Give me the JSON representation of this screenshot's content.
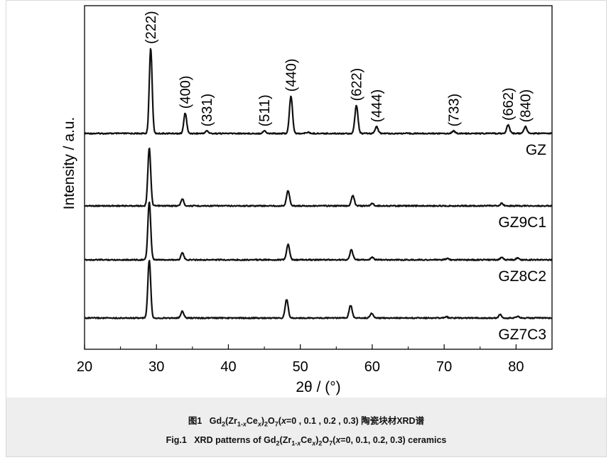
{
  "chart_data": {
    "type": "line",
    "xlabel": "2θ / (°)",
    "ylabel": "Intensity / a.u.",
    "xlim": [
      20,
      85
    ],
    "xticks": [
      20,
      30,
      40,
      50,
      60,
      70,
      80
    ],
    "grid": false,
    "series": [
      {
        "name": "GZ",
        "baseline_frac": 0.0,
        "peaks": [
          {
            "x": 29.2,
            "h": 1.0,
            "w": 0.28
          },
          {
            "x": 34.0,
            "h": 0.24,
            "w": 0.28
          },
          {
            "x": 37.0,
            "h": 0.03,
            "w": 0.3
          },
          {
            "x": 45.0,
            "h": 0.03,
            "w": 0.3
          },
          {
            "x": 48.7,
            "h": 0.44,
            "w": 0.3
          },
          {
            "x": 51.0,
            "h": 0.015,
            "w": 0.3
          },
          {
            "x": 57.8,
            "h": 0.33,
            "w": 0.3
          },
          {
            "x": 60.6,
            "h": 0.08,
            "w": 0.3
          },
          {
            "x": 71.3,
            "h": 0.03,
            "w": 0.3
          },
          {
            "x": 78.9,
            "h": 0.1,
            "w": 0.3
          },
          {
            "x": 81.3,
            "h": 0.08,
            "w": 0.3
          }
        ]
      },
      {
        "name": "GZ9C1",
        "peaks": [
          {
            "x": 29.0,
            "h": 1.0,
            "w": 0.28
          },
          {
            "x": 33.6,
            "h": 0.12,
            "w": 0.28
          },
          {
            "x": 48.3,
            "h": 0.26,
            "w": 0.3
          },
          {
            "x": 57.3,
            "h": 0.18,
            "w": 0.3
          },
          {
            "x": 60.0,
            "h": 0.04,
            "w": 0.3
          },
          {
            "x": 78.0,
            "h": 0.04,
            "w": 0.3
          }
        ]
      },
      {
        "name": "GZ8C2",
        "peaks": [
          {
            "x": 29.0,
            "h": 1.0,
            "w": 0.28
          },
          {
            "x": 33.6,
            "h": 0.12,
            "w": 0.28
          },
          {
            "x": 48.3,
            "h": 0.26,
            "w": 0.3
          },
          {
            "x": 57.1,
            "h": 0.17,
            "w": 0.3
          },
          {
            "x": 60.0,
            "h": 0.04,
            "w": 0.3
          },
          {
            "x": 70.4,
            "h": 0.02,
            "w": 0.3
          },
          {
            "x": 78.0,
            "h": 0.04,
            "w": 0.3
          },
          {
            "x": 80.2,
            "h": 0.03,
            "w": 0.3
          }
        ]
      },
      {
        "name": "GZ7C3",
        "peaks": [
          {
            "x": 29.0,
            "h": 1.0,
            "w": 0.28
          },
          {
            "x": 33.6,
            "h": 0.12,
            "w": 0.28
          },
          {
            "x": 48.1,
            "h": 0.32,
            "w": 0.3
          },
          {
            "x": 57.0,
            "h": 0.22,
            "w": 0.3
          },
          {
            "x": 59.9,
            "h": 0.08,
            "w": 0.3
          },
          {
            "x": 70.3,
            "h": 0.02,
            "w": 0.3
          },
          {
            "x": 77.8,
            "h": 0.06,
            "w": 0.3
          },
          {
            "x": 80.2,
            "h": 0.03,
            "w": 0.3
          }
        ]
      }
    ],
    "annotations": [
      {
        "text": "(222)",
        "x": 29.2
      },
      {
        "text": "(400)",
        "x": 34.0
      },
      {
        "text": "(331)",
        "x": 37.0
      },
      {
        "text": "(511)",
        "x": 45.0
      },
      {
        "text": "(440)",
        "x": 48.7
      },
      {
        "text": "(622)",
        "x": 57.8
      },
      {
        "text": "(444)",
        "x": 60.6
      },
      {
        "text": "(733)",
        "x": 71.3
      },
      {
        "text": "(662)",
        "x": 78.9
      },
      {
        "text": "(840)",
        "x": 81.3
      }
    ]
  },
  "caption": {
    "cn": {
      "prefix": "图1",
      "formula_main": "Gd",
      "sub1": "2",
      "p2": "(Zr",
      "sub2": "1-",
      "var1": "x",
      "p3": "Ce",
      "var2": "x",
      "p4": ")",
      "sub3": "2",
      "p5": "O",
      "sub4": "7",
      "p6": "(",
      "var3": "x",
      "p7": "=0 , 0.1 , 0.2 , 0.3) 陶瓷块材XRD谱"
    },
    "en": {
      "prefix": "Fig.1",
      "p1": "XRD patterns of Gd",
      "sub1": "2",
      "p2": "(Zr",
      "sub2": "1-",
      "var1": "x",
      "p3": "Ce",
      "var2": "x",
      "p4": ")",
      "sub3": "2",
      "p5": "O",
      "sub4": "7",
      "p6": "(",
      "var3": "x",
      "p7": "=0, 0.1, 0.2, 0.3) ceramics"
    }
  }
}
